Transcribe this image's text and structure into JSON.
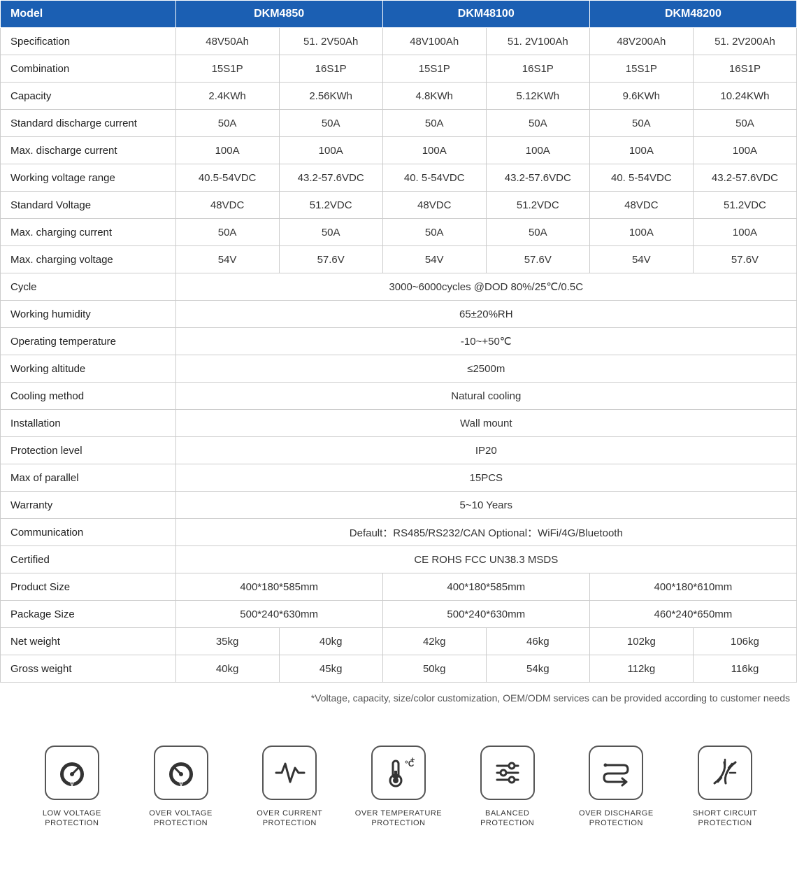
{
  "header": {
    "model_label": "Model",
    "models": [
      "DKM4850",
      "DKM48100",
      "DKM48200"
    ]
  },
  "rows_top": [
    {
      "label": "Specification",
      "cells": [
        "48V50Ah",
        "51. 2V50Ah",
        "48V100Ah",
        "51. 2V100Ah",
        "48V200Ah",
        "51. 2V200Ah"
      ]
    },
    {
      "label": "Combination",
      "cells": [
        "15S1P",
        "16S1P",
        "15S1P",
        "16S1P",
        "15S1P",
        "16S1P"
      ]
    },
    {
      "label": "Capacity",
      "cells": [
        "2.4KWh",
        "2.56KWh",
        "4.8KWh",
        "5.12KWh",
        "9.6KWh",
        "10.24KWh"
      ]
    },
    {
      "label": "Standard discharge current",
      "cells": [
        "50A",
        "50A",
        "50A",
        "50A",
        "50A",
        "50A"
      ]
    },
    {
      "label": "Max. discharge current",
      "cells": [
        "100A",
        "100A",
        "100A",
        "100A",
        "100A",
        "100A"
      ]
    },
    {
      "label": "Working voltage range",
      "cells": [
        "40.5-54VDC",
        "43.2-57.6VDC",
        "40. 5-54VDC",
        "43.2-57.6VDC",
        "40. 5-54VDC",
        "43.2-57.6VDC"
      ]
    },
    {
      "label": "Standard Voltage",
      "cells": [
        "48VDC",
        "51.2VDC",
        "48VDC",
        "51.2VDC",
        "48VDC",
        "51.2VDC"
      ]
    },
    {
      "label": "Max. charging current",
      "cells": [
        "50A",
        "50A",
        "50A",
        "50A",
        "100A",
        "100A"
      ]
    },
    {
      "label": "Max. charging voltage",
      "cells": [
        "54V",
        "57.6V",
        "54V",
        "57.6V",
        "54V",
        "57.6V"
      ]
    }
  ],
  "rows_full": [
    {
      "label": "Cycle",
      "value": "3000~6000cycles @DOD 80%/25℃/0.5C"
    },
    {
      "label": "Working humidity",
      "value": "65±20%RH"
    },
    {
      "label": "Operating temperature",
      "value": "-10~+50℃"
    },
    {
      "label": "Working altitude",
      "value": "≤2500m"
    },
    {
      "label": "Cooling method",
      "value": "Natural cooling"
    },
    {
      "label": "Installation",
      "value": "Wall mount"
    },
    {
      "label": "Protection level",
      "value": "IP20"
    },
    {
      "label": "Max of parallel",
      "value": "15PCS"
    },
    {
      "label": "Warranty",
      "value": "5~10 Years"
    },
    {
      "label": "Communication",
      "value": "Default：RS485/RS232/CAN Optional：WiFi/4G/Bluetooth"
    },
    {
      "label": "Certified",
      "value": "CE ROHS FCC UN38.3 MSDS"
    }
  ],
  "rows_triple": [
    {
      "label": "Product Size",
      "cells": [
        "400*180*585mm",
        "400*180*585mm",
        "400*180*610mm"
      ]
    },
    {
      "label": "Package Size",
      "cells": [
        "500*240*630mm",
        "500*240*630mm",
        "460*240*650mm"
      ]
    }
  ],
  "rows_bottom": [
    {
      "label": "Net weight",
      "cells": [
        "35kg",
        "40kg",
        "42kg",
        "46kg",
        "102kg",
        "106kg"
      ]
    },
    {
      "label": "Gross weight",
      "cells": [
        "40kg",
        "45kg",
        "50kg",
        "54kg",
        "112kg",
        "116kg"
      ]
    }
  ],
  "footnote": "*Voltage, capacity, size/color customization, OEM/ODM services can be provided according to customer needs",
  "icons": [
    {
      "name": "low-voltage-icon",
      "label": "LOW VOLTAGE PROTECTION"
    },
    {
      "name": "over-voltage-icon",
      "label": "OVER VOLTAGE PROTECTION"
    },
    {
      "name": "over-current-icon",
      "label": "OVER CURRENT PROTECTION"
    },
    {
      "name": "over-temperature-icon",
      "label": "OVER TEMPERATURE PROTECTION"
    },
    {
      "name": "balanced-icon",
      "label": "BALANCED PROTECTION"
    },
    {
      "name": "over-discharge-icon",
      "label": "OVER DISCHARGE PROTECTION"
    },
    {
      "name": "short-circuit-icon",
      "label": "SHORT CIRCUIT PROTECTION"
    }
  ],
  "colors": {
    "header_bg": "#1b5fb3",
    "header_text": "#ffffff",
    "border": "#cccccc",
    "text": "#333333"
  },
  "column_widths_pct": [
    22,
    13,
    13,
    13,
    13,
    13,
    13
  ]
}
